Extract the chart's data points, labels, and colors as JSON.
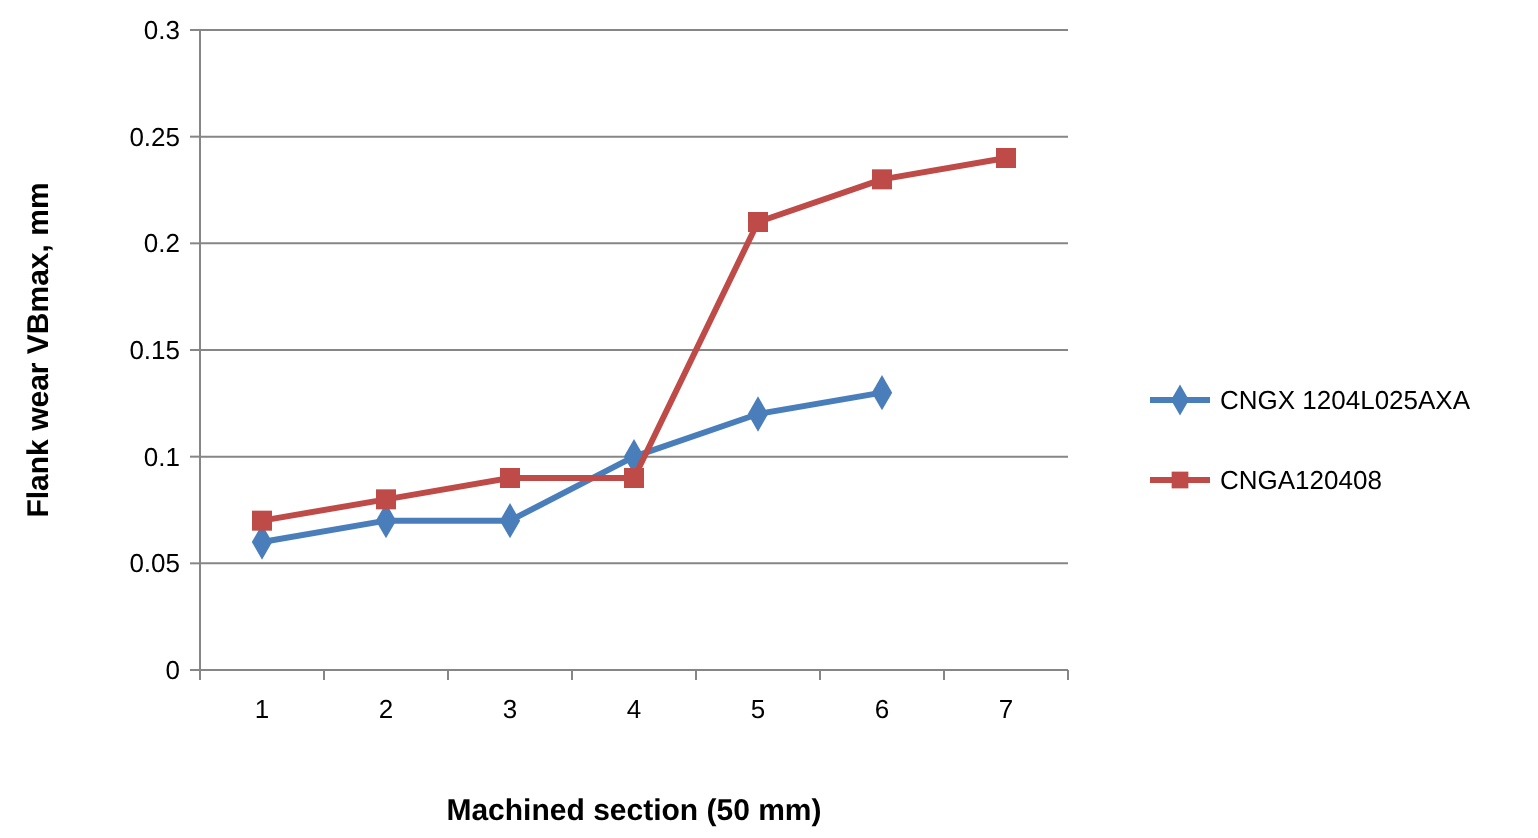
{
  "chart_data": {
    "type": "line",
    "xlabel": "Machined section (50 mm)",
    "ylabel": "Flank wear  VBmax, mm",
    "categories": [
      "1",
      "2",
      "3",
      "4",
      "5",
      "6",
      "7"
    ],
    "ylim": [
      0,
      0.3
    ],
    "yticks": [
      0,
      0.05,
      0.1,
      0.15,
      0.2,
      0.25,
      0.3
    ],
    "grid": "y",
    "legend": "right",
    "line_style": "solid",
    "series": [
      {
        "name": "CNGX 1204L025AXA",
        "color": "#4a7ebb",
        "marker": "diamond",
        "values": [
          0.06,
          0.07,
          0.07,
          0.1,
          0.12,
          0.13,
          null
        ]
      },
      {
        "name": "CNGA120408",
        "color": "#be4b48",
        "marker": "square",
        "values": [
          0.07,
          0.08,
          0.09,
          0.09,
          0.21,
          0.23,
          0.24
        ]
      }
    ]
  }
}
